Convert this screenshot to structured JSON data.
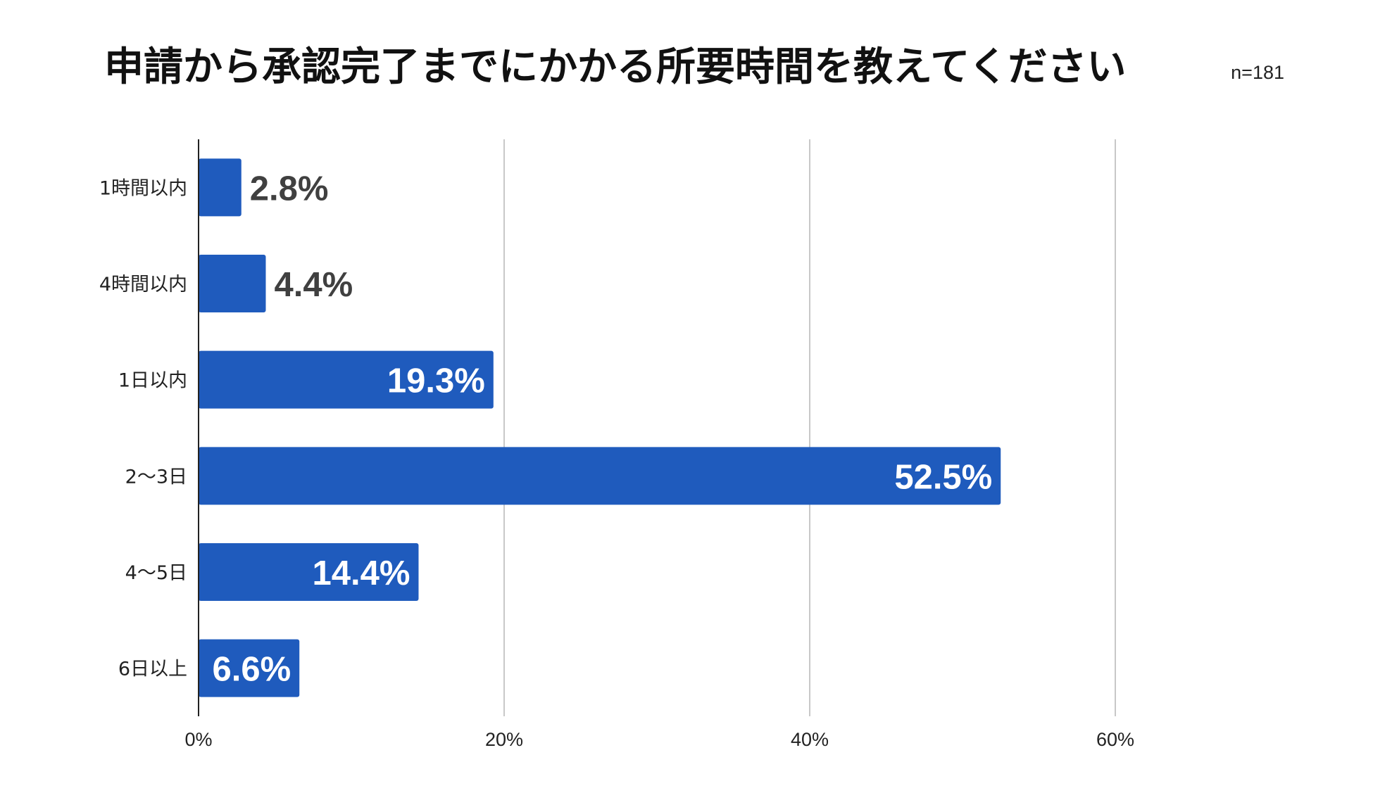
{
  "chart_data": {
    "type": "bar",
    "orientation": "horizontal",
    "title": "申請から承認完了までにかかる所要時間を教えてください",
    "sample_size": "n=181",
    "categories": [
      "1時間以内",
      "4時間以内",
      "1日以内",
      "2〜3日",
      "4〜5日",
      "6日以上"
    ],
    "values": [
      2.8,
      4.4,
      19.3,
      52.5,
      14.4,
      6.6
    ],
    "value_labels": [
      "2.8%",
      "4.4%",
      "19.3%",
      "52.5%",
      "14.4%",
      "6.6%"
    ],
    "xlim": [
      0,
      60
    ],
    "x_ticks": [
      0,
      20,
      40,
      60
    ],
    "x_tick_labels": [
      "0%",
      "20%",
      "40%",
      "60%"
    ],
    "grid": "vertical",
    "legend": "none",
    "colors": {
      "bar": "#1f5bbd",
      "label_inside": "#ffffff",
      "label_outside": "#404040",
      "grid": "#c8c8c8",
      "axis": "#222222"
    }
  }
}
